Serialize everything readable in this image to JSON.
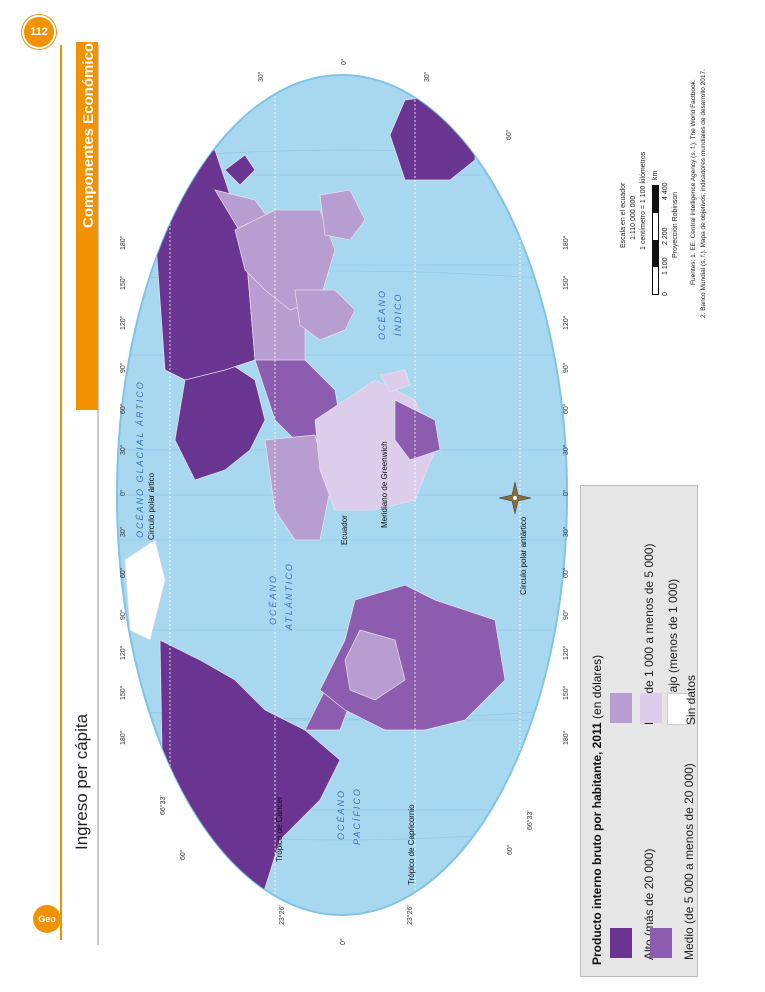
{
  "page": {
    "number": "112",
    "logo_text": "Geo"
  },
  "header": {
    "section_title": "Componentes Económicos",
    "page_title": "Ingreso per cápita"
  },
  "map": {
    "graticule_labels": {
      "top_row": [
        "180°",
        "150°",
        "120°",
        "90°",
        "60°",
        "30°",
        "0°",
        "30°",
        "60°",
        "90°",
        "120°",
        "150°",
        "180°"
      ],
      "bottom_row": [
        "180°",
        "150°",
        "120°",
        "90°",
        "60°",
        "30°",
        "0°",
        "30°",
        "60°",
        "90°",
        "120°",
        "150°",
        "180°"
      ],
      "left_lat": [
        "60°",
        "66°33'",
        "23°26'",
        "0°",
        "23°26'",
        "66°33'",
        "60°"
      ],
      "top_lat": [
        "30°",
        "0°",
        "30°",
        "60°"
      ]
    },
    "lines": {
      "arctic_circle": "Círculo polar ártico",
      "antarctic_circle": "Círculo polar antártico",
      "tropic_cancer": "Trópico de Cáncer",
      "tropic_capricorn": "Trópico de Capricornio",
      "equator": "Ecuador",
      "greenwich": "Meridiano de Greenwich"
    },
    "oceans": {
      "arctic": "OCÉANO GLACIAL ÁRTICO",
      "atlantic_1": "OCÉANO",
      "atlantic_2": "ATLÁNTICO",
      "pacific_1": "OCÉANO",
      "pacific_2": "PACÍFICO",
      "indian_1": "OCÉANO",
      "indian_2": "ÍNDICO"
    },
    "colors": {
      "ocean": "#a8d8f0",
      "alto": "#6a3590",
      "medio": "#8c5dae",
      "bajo": "#b89ed0",
      "muy_bajo": "#dccdea",
      "sin_datos": "#ffffff"
    }
  },
  "scale": {
    "title": "Escala en el ecuador",
    "ratio": "1:110 000 000",
    "equivalence": "1 centímetro = 1 100 kilómetros",
    "ticks": [
      "0",
      "1 100",
      "2 200",
      "4 400"
    ],
    "unit": "km",
    "projection": "Proyección Robinson"
  },
  "sources": {
    "line1": "Fuentes: 1. EE. Central Intelligence Agency (s. f.). The World Factbook.",
    "line2": "2. Banco Mundial (s. f.). Mapa de objetivos: indicadores mundiales de desarrollo 2017."
  },
  "legend": {
    "title": "Producto interno bruto por habitante, 2011",
    "unit": "(en dólares)",
    "items": [
      {
        "label": "Alto (más de 20 000)",
        "color": "#6a3590"
      },
      {
        "label": "Medio (de 5 000 a menos de 20 000)",
        "color": "#8c5dae"
      },
      {
        "label": "Bajo (de 1 000 a menos de 5 000)",
        "color": "#b89ed0"
      },
      {
        "label": "Muy bajo (menos de 1 000)",
        "color": "#dccdea"
      },
      {
        "label": "Sin datos",
        "color": "#ffffff"
      }
    ]
  }
}
